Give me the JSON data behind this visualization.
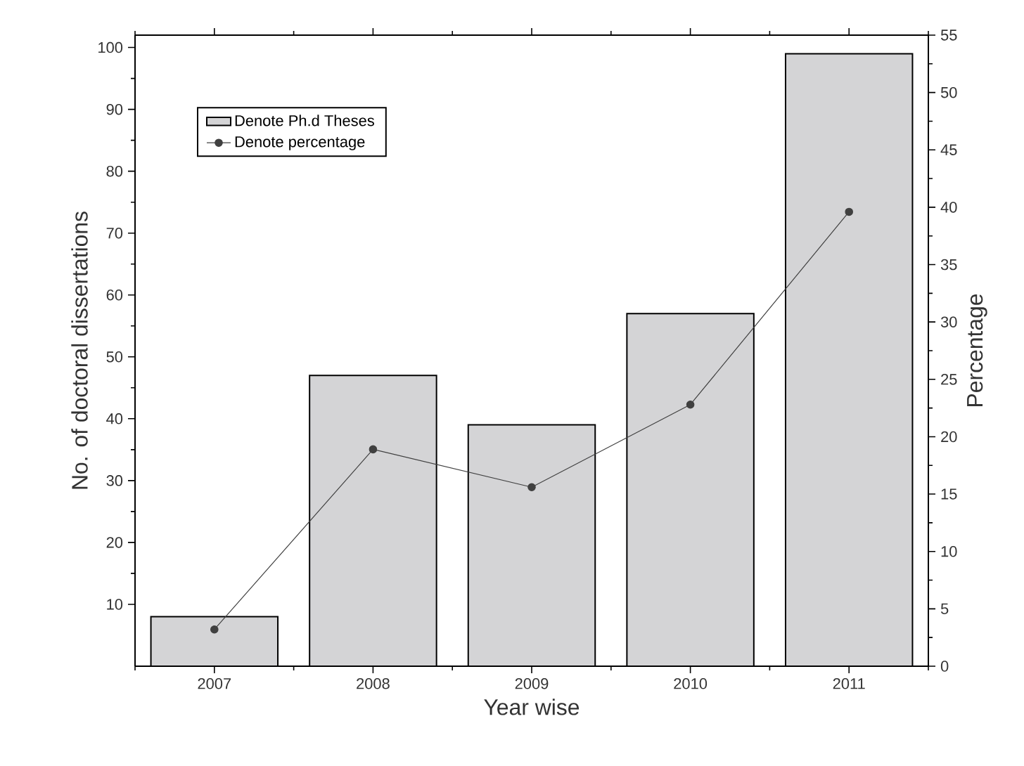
{
  "chart_data": {
    "type": "bar",
    "xlabel": "Year wise",
    "ylabel": "No. of doctoral dissertations",
    "y2label": "Percentage",
    "categories": [
      "2007",
      "2008",
      "2009",
      "2010",
      "2011"
    ],
    "series": [
      {
        "name": "Denote Ph.d Theses",
        "color": "#d4d4d6",
        "values": [
          8,
          47,
          39,
          57,
          99
        ]
      },
      {
        "name": "Denote percentage",
        "type": "line",
        "axis": "y2",
        "color": "#404040",
        "values": [
          3.2,
          18.9,
          15.6,
          22.8,
          39.6
        ]
      }
    ],
    "ylim": [
      0,
      102
    ],
    "yticks": [
      10,
      20,
      30,
      40,
      50,
      60,
      70,
      80,
      90,
      100
    ],
    "y2lim": [
      0,
      55
    ],
    "y2ticks": [
      0,
      5,
      10,
      15,
      20,
      25,
      30,
      35,
      40,
      45,
      50,
      55
    ],
    "legend": "top left",
    "marker": "circle",
    "line_style": "solid",
    "grid": false
  }
}
